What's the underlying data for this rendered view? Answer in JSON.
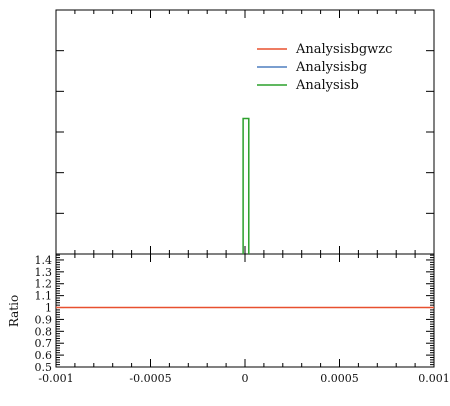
{
  "chart_data": [
    {
      "type": "line",
      "title": "",
      "xlabel": "",
      "ylabel": "",
      "xlim": [
        -0.001,
        0.001
      ],
      "grid": false,
      "legend_placement": "top-right",
      "legend": [
        "Analysisbgwzc",
        "Analysisbg",
        "Analysisb"
      ],
      "series": [
        {
          "name": "Analysisbgwzc",
          "color": "#e8502f",
          "x": [],
          "y": []
        },
        {
          "name": "Analysisbg",
          "color": "#4f7fbf",
          "x": [],
          "y": []
        },
        {
          "name": "Analysisb",
          "color": "#2ca02c",
          "x": [
            -1e-05,
            -1e-05,
            2e-05,
            2e-05
          ],
          "y": [
            0,
            1,
            1,
            0
          ]
        }
      ],
      "ylim": [
        0,
        1.8
      ]
    },
    {
      "type": "line",
      "title": "",
      "xlabel": "",
      "ylabel": "Ratio",
      "xlim": [
        -0.001,
        0.001
      ],
      "ylim": [
        0.5,
        1.45
      ],
      "grid": false,
      "x_tick_labels": [
        "-0.001",
        "-0.0005",
        "0",
        "0.0005",
        "0.001"
      ],
      "x_ticks": [
        -0.001,
        -0.0005,
        0,
        0.0005,
        0.001
      ],
      "y_tick_labels": [
        "1.4",
        "1.3",
        "1.2",
        "1.1",
        "1",
        "0.9",
        "0.8",
        "0.7",
        "0.6",
        "0.5"
      ],
      "y_ticks": [
        1.4,
        1.3,
        1.2,
        1.1,
        1.0,
        0.9,
        0.8,
        0.7,
        0.6,
        0.5
      ],
      "series": [
        {
          "name": "ratio",
          "color": "#e8502f",
          "x": [
            -0.001,
            0.001
          ],
          "y": [
            1.0,
            1.0
          ]
        }
      ]
    }
  ]
}
